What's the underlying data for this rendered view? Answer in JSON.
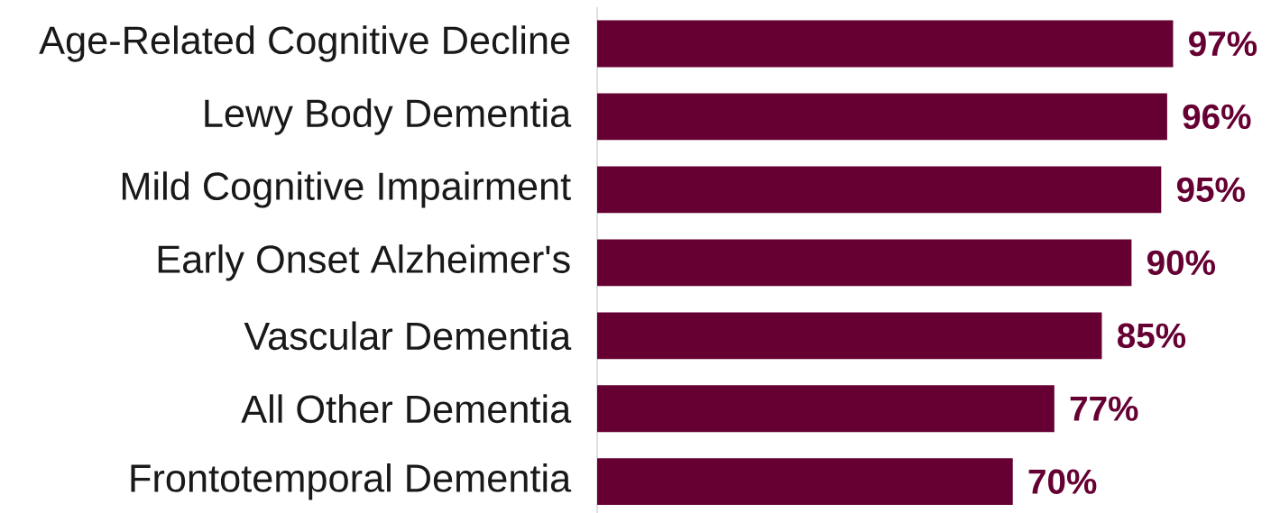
{
  "chart_data": {
    "type": "bar",
    "orientation": "horizontal",
    "categories": [
      "Age-Related Cognitive Decline",
      "Lewy Body Dementia",
      "Mild Cognitive Impairment",
      "Early Onset Alzheimer's",
      "Vascular Dementia",
      "All Other Dementia",
      "Frontotemporal Dementia"
    ],
    "values": [
      97,
      96,
      95,
      90,
      85,
      77,
      70
    ],
    "value_labels": [
      "97%",
      "96%",
      "95%",
      "90%",
      "85%",
      "77%",
      "70%"
    ],
    "color": "#660033"
  }
}
